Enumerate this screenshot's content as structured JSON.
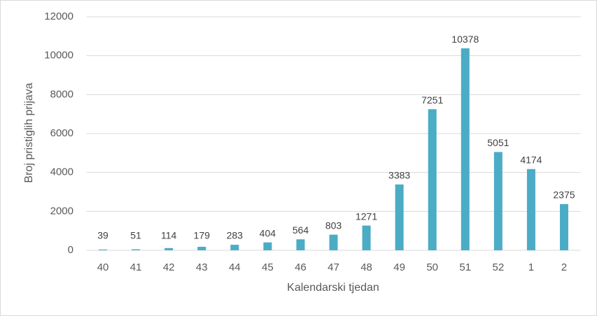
{
  "chart_data": {
    "type": "bar",
    "x_label": "Kalendarski tjedan",
    "y_label": "Broj pristiglih prijava",
    "categories": [
      "40",
      "41",
      "42",
      "43",
      "44",
      "45",
      "46",
      "47",
      "48",
      "49",
      "50",
      "51",
      "52",
      "1",
      "2"
    ],
    "values": [
      39,
      51,
      114,
      179,
      283,
      404,
      564,
      803,
      1271,
      3383,
      7251,
      10378,
      5051,
      4174,
      2375
    ],
    "color": "#4bacc6",
    "ylim": [
      0,
      12000
    ],
    "yticks": [
      0,
      2000,
      4000,
      6000,
      8000,
      10000,
      12000
    ],
    "grid": true
  }
}
